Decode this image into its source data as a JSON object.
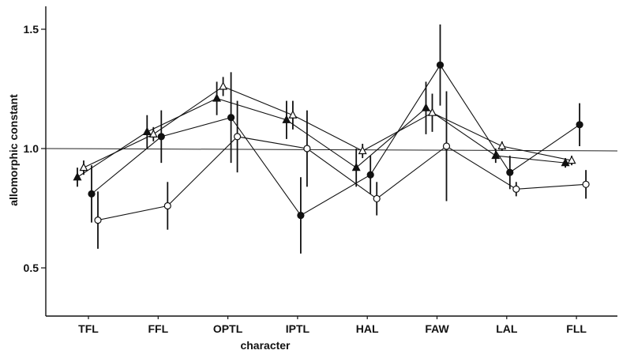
{
  "chart_data": {
    "type": "line",
    "title": "",
    "xlabel": "character",
    "ylabel": "allomorphic constant",
    "categories": [
      "TFL",
      "FFL",
      "OPTL",
      "IPTL",
      "HAL",
      "FAW",
      "LAL",
      "FLL"
    ],
    "ylim": [
      0.3,
      1.6
    ],
    "yticks": [
      0.5,
      1.0,
      1.5
    ],
    "ytick_labels": [
      "0.5",
      "1.0",
      "1.5"
    ],
    "reference_line": 1.0,
    "grid": false,
    "legend": "none",
    "series": [
      {
        "marker": "filled-triangle",
        "values": [
          0.88,
          1.07,
          1.21,
          1.12,
          0.92,
          1.17,
          0.97,
          0.94
        ],
        "errors": [
          0.04,
          0.07,
          0.07,
          0.08,
          0.08,
          0.11,
          0.03,
          0.02
        ]
      },
      {
        "marker": "open-triangle",
        "values": [
          0.92,
          1.06,
          1.26,
          1.14,
          0.99,
          1.15,
          1.01,
          0.95
        ],
        "errors": [
          0.03,
          0.03,
          0.04,
          0.06,
          0.03,
          0.08,
          0.02,
          0.02
        ]
      },
      {
        "marker": "filled-circle",
        "values": [
          0.81,
          1.05,
          1.13,
          0.72,
          0.89,
          1.35,
          0.9,
          1.1
        ],
        "errors": [
          0.12,
          0.11,
          0.19,
          0.16,
          0.08,
          0.17,
          0.07,
          0.09
        ]
      },
      {
        "marker": "open-circle",
        "values": [
          0.7,
          0.76,
          1.05,
          1.0,
          0.79,
          1.01,
          0.83,
          0.85
        ],
        "errors": [
          0.12,
          0.1,
          0.15,
          0.16,
          0.07,
          0.23,
          0.03,
          0.06
        ]
      }
    ]
  }
}
